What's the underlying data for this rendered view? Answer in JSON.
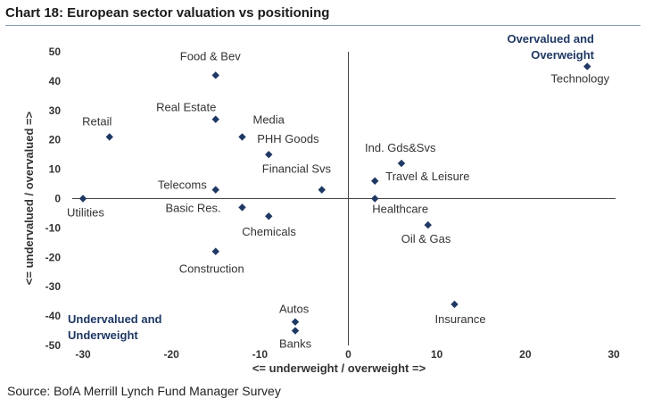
{
  "chart_data": {
    "type": "scatter",
    "title": "Chart 18: European sector valuation vs positioning",
    "xlabel": "<= underweight / overweight =>",
    "ylabel": "<= undervalued / overvalued =>",
    "xlim": [
      -30,
      30
    ],
    "ylim": [
      -50,
      50
    ],
    "xticks": [
      -30,
      -20,
      -10,
      0,
      10,
      20,
      30
    ],
    "yticks": [
      50,
      40,
      30,
      20,
      10,
      0,
      -10,
      -20,
      -30,
      -40,
      -50
    ],
    "grid": false,
    "marker_color": "#1f3864",
    "quadrant_labels": [
      {
        "lines": [
          "Overvalued and",
          "Overweight"
        ],
        "position": "top-right"
      },
      {
        "lines": [
          "Undervalued and",
          "Underweight"
        ],
        "position": "bottom-left"
      }
    ],
    "points": [
      {
        "label": "Technology",
        "x": 27,
        "y": 45
      },
      {
        "label": "Food & Bev",
        "x": -15,
        "y": 42
      },
      {
        "label": "Real Estate",
        "x": -15,
        "y": 27
      },
      {
        "label": "Media",
        "x": -12,
        "y": 21
      },
      {
        "label": "Retail",
        "x": -27,
        "y": 21
      },
      {
        "label": "PHH Goods",
        "x": -9,
        "y": 15
      },
      {
        "label": "Ind. Gds&Svs",
        "x": 6,
        "y": 12
      },
      {
        "label": "Travel & Leisure",
        "x": 3,
        "y": 6
      },
      {
        "label": "Financial Svs",
        "x": -3,
        "y": 3
      },
      {
        "label": "Telecoms",
        "x": -15,
        "y": 3
      },
      {
        "label": "Utilities",
        "x": -30,
        "y": 0
      },
      {
        "label": "Healthcare",
        "x": 3,
        "y": 0
      },
      {
        "label": "Basic Res.",
        "x": -12,
        "y": -3
      },
      {
        "label": "Chemicals",
        "x": -9,
        "y": -6
      },
      {
        "label": "Oil & Gas",
        "x": 9,
        "y": -9
      },
      {
        "label": "Construction",
        "x": -15,
        "y": -18
      },
      {
        "label": "Insurance",
        "x": 12,
        "y": -36
      },
      {
        "label": "Autos",
        "x": -6,
        "y": -42
      },
      {
        "label": "Banks",
        "x": -6,
        "y": -45
      }
    ]
  },
  "source": "Source: BofA Merrill Lynch Fund Manager Survey"
}
